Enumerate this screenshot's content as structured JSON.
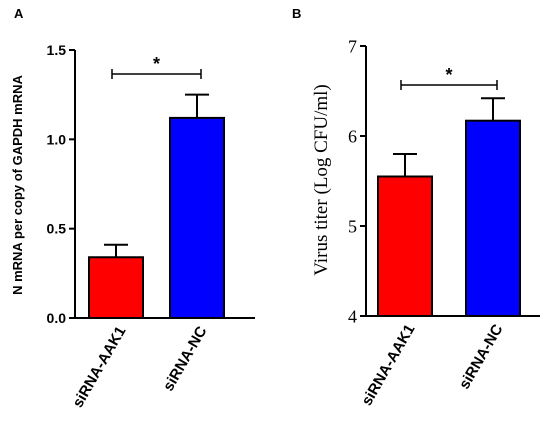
{
  "chart_data": [
    {
      "type": "bar",
      "panel_label": "A",
      "categories": [
        "siRNA-AAK1",
        "siRNA-NC"
      ],
      "values": [
        0.34,
        1.12
      ],
      "errors": [
        0.07,
        0.13
      ],
      "colors": [
        "#ff0000",
        "#0000ff"
      ],
      "ylabel": "N mRNA per copy of GAPDH mRNA",
      "ylim": [
        0,
        1.5
      ],
      "yticks": [
        0,
        0.5,
        1,
        1.5
      ],
      "ytick_labels": [
        "0.0",
        "0.5",
        "1.0",
        "1.5"
      ],
      "significance": "*",
      "grid": false
    },
    {
      "type": "bar",
      "panel_label": "B",
      "categories": [
        "siRNA-AAK1",
        "siRNA-NC"
      ],
      "values": [
        5.55,
        6.17
      ],
      "errors": [
        0.25,
        0.25
      ],
      "colors": [
        "#ff0000",
        "#0000ff"
      ],
      "ylabel": "Virus titer (Log CFU/ml)",
      "ylim": [
        4,
        7
      ],
      "yticks": [
        4,
        5,
        6,
        7
      ],
      "ytick_labels": [
        "4",
        "5",
        "6",
        "7"
      ],
      "significance": "*",
      "grid": false
    }
  ]
}
